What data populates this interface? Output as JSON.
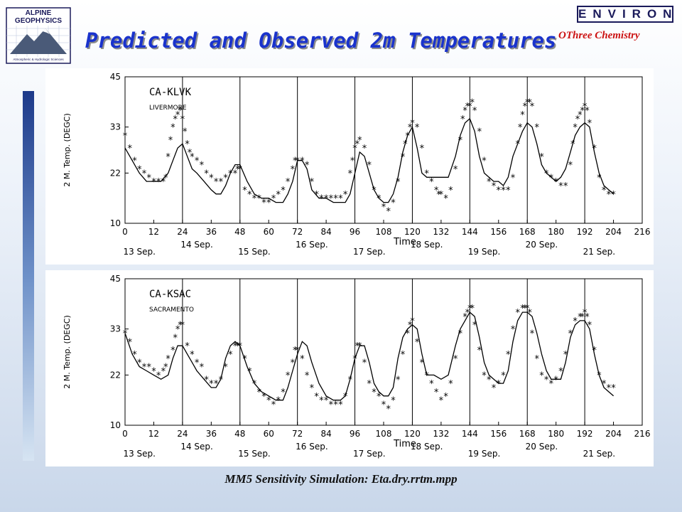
{
  "header": {
    "title": "Predicted and Observed 2m Temperatures",
    "logo_left_line1": "ALPINE",
    "logo_left_line2": "GEOPHYSICS",
    "logo_left_tagline": "Atmospheric & Hydrologic Sciences",
    "logo_right": "ENVIRON",
    "logo_right_subtitle": "OThree Chemistry"
  },
  "footer": {
    "caption": "MM5 Sensitivity Simulation:  Eta.dry.rrtm.mpp"
  },
  "colors": {
    "title": "#1a33cc",
    "logo_right": "#1a1a5a",
    "subtitle_right": "#cc1111",
    "side_bar_top": "#1d3a8a",
    "plot_line": "#000000"
  },
  "chart_data": [
    {
      "type": "line",
      "station": "CA-KLVK",
      "station_name": "LIVERMORE",
      "xlabel": "Time",
      "ylabel": "2 M. Temp. (DEGC)",
      "xlim": [
        0,
        216
      ],
      "ylim": [
        10,
        45
      ],
      "xticks": [
        0,
        12,
        24,
        36,
        48,
        60,
        72,
        84,
        96,
        108,
        120,
        132,
        144,
        156,
        168,
        180,
        192,
        204,
        216
      ],
      "yticks": [
        10,
        22,
        33,
        45
      ],
      "day_dividers": [
        24,
        48,
        72,
        96,
        120,
        144,
        168,
        192
      ],
      "day_labels": [
        {
          "label": "13 Sep.",
          "x": 6,
          "row": 1
        },
        {
          "label": "14 Sep.",
          "x": 30,
          "row": 0
        },
        {
          "label": "15 Sep.",
          "x": 54,
          "row": 1
        },
        {
          "label": "16 Sep.",
          "x": 78,
          "row": 0
        },
        {
          "label": "17 Sep.",
          "x": 102,
          "row": 1
        },
        {
          "label": "18 Sep.",
          "x": 126,
          "row": 0
        },
        {
          "label": "19 Sep.",
          "x": 150,
          "row": 1
        },
        {
          "label": "20 Sep.",
          "x": 174,
          "row": 0
        },
        {
          "label": "21 Sep.",
          "x": 198,
          "row": 1
        }
      ],
      "series": [
        {
          "role": "predicted",
          "style": "line",
          "x": [
            0,
            3,
            6,
            9,
            12,
            15,
            18,
            20,
            22,
            24,
            26,
            28,
            30,
            33,
            36,
            38,
            40,
            42,
            44,
            46,
            48,
            51,
            54,
            57,
            60,
            63,
            66,
            68,
            70,
            72,
            74,
            76,
            78,
            81,
            84,
            87,
            90,
            92,
            94,
            96,
            98,
            100,
            102,
            104,
            106,
            108,
            110,
            112,
            114,
            116,
            118,
            120,
            122,
            124,
            126,
            129,
            132,
            135,
            138,
            140,
            142,
            144,
            146,
            148,
            150,
            152,
            154,
            156,
            158,
            160,
            162,
            164,
            166,
            168,
            170,
            172,
            174,
            176,
            178,
            180,
            182,
            184,
            186,
            188,
            190,
            192,
            194,
            196,
            198,
            200,
            202,
            204
          ],
          "y": [
            28,
            25,
            22,
            20,
            20,
            20,
            22,
            25,
            28,
            29,
            26,
            23,
            22,
            20,
            18,
            17,
            17,
            19,
            22,
            24,
            24,
            20,
            17,
            16,
            16,
            15,
            15,
            17,
            20,
            25,
            25,
            23,
            18,
            16,
            16,
            15,
            15,
            15,
            17,
            22,
            27,
            26,
            22,
            18,
            16,
            15,
            15,
            17,
            21,
            27,
            31,
            33,
            28,
            22,
            21,
            21,
            21,
            21,
            26,
            31,
            34,
            35,
            32,
            26,
            22,
            21,
            20,
            20,
            19,
            21,
            26,
            29,
            32,
            34,
            33,
            29,
            24,
            22,
            21,
            20,
            21,
            23,
            27,
            31,
            33,
            34,
            33,
            27,
            22,
            19,
            18,
            17
          ]
        },
        {
          "role": "observed",
          "style": "asterisk",
          "x": [
            0,
            2,
            4,
            6,
            8,
            10,
            12,
            14,
            16,
            17,
            18,
            19,
            20,
            21,
            22,
            23,
            24,
            25,
            26,
            27,
            28,
            30,
            32,
            34,
            36,
            38,
            40,
            42,
            44,
            46,
            47,
            48,
            50,
            52,
            54,
            56,
            58,
            60,
            62,
            64,
            66,
            68,
            70,
            71,
            72,
            74,
            76,
            78,
            80,
            82,
            84,
            86,
            88,
            90,
            92,
            94,
            95,
            96,
            97,
            98,
            100,
            102,
            104,
            106,
            108,
            110,
            112,
            114,
            116,
            117,
            118,
            119,
            120,
            122,
            124,
            126,
            128,
            130,
            131,
            132,
            134,
            136,
            138,
            140,
            141,
            142,
            143,
            144,
            145,
            146,
            148,
            150,
            152,
            154,
            156,
            158,
            160,
            162,
            164,
            165,
            166,
            167,
            168,
            169,
            170,
            172,
            174,
            176,
            178,
            180,
            182,
            184,
            186,
            187,
            188,
            189,
            190,
            191,
            192,
            193,
            194,
            196,
            198,
            200,
            202,
            204
          ],
          "y": [
            31,
            28,
            25,
            23,
            22,
            21,
            20,
            20,
            20,
            21,
            26,
            30,
            33,
            35,
            36,
            37,
            35,
            32,
            29,
            27,
            26,
            25,
            24,
            22,
            21,
            20,
            20,
            21,
            22,
            22,
            23,
            23,
            18,
            17,
            16,
            16,
            15,
            15,
            16,
            17,
            18,
            20,
            23,
            25,
            25,
            25,
            24,
            20,
            17,
            16,
            16,
            16,
            16,
            16,
            17,
            22,
            25,
            28,
            29,
            30,
            28,
            24,
            18,
            16,
            14,
            13,
            15,
            20,
            26,
            29,
            31,
            33,
            34,
            33,
            28,
            22,
            20,
            18,
            17,
            17,
            16,
            18,
            23,
            30,
            35,
            37,
            38,
            38,
            39,
            37,
            32,
            25,
            20,
            19,
            18,
            18,
            18,
            21,
            29,
            33,
            36,
            38,
            39,
            39,
            38,
            33,
            26,
            22,
            21,
            20,
            19,
            19,
            24,
            29,
            33,
            35,
            36,
            37,
            38,
            37,
            34,
            28,
            21,
            18,
            17,
            17
          ]
        }
      ]
    },
    {
      "type": "line",
      "station": "CA-KSAC",
      "station_name": "SACRAMENTO",
      "xlabel": "Time",
      "ylabel": "2 M. Temp. (DEGC)",
      "xlim": [
        0,
        216
      ],
      "ylim": [
        10,
        45
      ],
      "xticks": [
        0,
        12,
        24,
        36,
        48,
        60,
        72,
        84,
        96,
        108,
        120,
        132,
        144,
        156,
        168,
        180,
        192,
        204,
        216
      ],
      "yticks": [
        10,
        22,
        33,
        45
      ],
      "day_dividers": [
        24,
        48,
        72,
        96,
        120,
        144,
        168,
        192
      ],
      "day_labels": [
        {
          "label": "13 Sep.",
          "x": 6,
          "row": 1
        },
        {
          "label": "14 Sep.",
          "x": 30,
          "row": 0
        },
        {
          "label": "15 Sep.",
          "x": 54,
          "row": 1
        },
        {
          "label": "16 Sep.",
          "x": 78,
          "row": 0
        },
        {
          "label": "17 Sep.",
          "x": 102,
          "row": 1
        },
        {
          "label": "18 Sep.",
          "x": 126,
          "row": 0
        },
        {
          "label": "19 Sep.",
          "x": 150,
          "row": 1
        },
        {
          "label": "20 Sep.",
          "x": 174,
          "row": 0
        },
        {
          "label": "21 Sep.",
          "x": 198,
          "row": 1
        }
      ],
      "series": [
        {
          "role": "predicted",
          "style": "line",
          "x": [
            0,
            3,
            6,
            9,
            12,
            15,
            18,
            20,
            22,
            24,
            26,
            28,
            30,
            33,
            36,
            38,
            40,
            42,
            44,
            46,
            48,
            51,
            54,
            57,
            60,
            63,
            66,
            68,
            70,
            72,
            74,
            76,
            78,
            81,
            84,
            87,
            90,
            92,
            94,
            96,
            98,
            100,
            102,
            104,
            106,
            108,
            110,
            112,
            114,
            116,
            118,
            120,
            122,
            124,
            126,
            129,
            132,
            135,
            138,
            140,
            142,
            144,
            146,
            148,
            150,
            152,
            154,
            156,
            158,
            160,
            162,
            164,
            166,
            168,
            170,
            172,
            174,
            176,
            178,
            180,
            182,
            184,
            186,
            188,
            190,
            192,
            194,
            196,
            198,
            200,
            202,
            204
          ],
          "y": [
            32,
            27,
            24,
            23,
            22,
            21,
            22,
            26,
            29,
            29,
            27,
            25,
            23,
            21,
            19,
            19,
            21,
            26,
            29,
            30,
            29,
            24,
            20,
            18,
            17,
            16,
            16,
            19,
            23,
            27,
            30,
            29,
            25,
            20,
            17,
            16,
            16,
            17,
            21,
            26,
            29,
            29,
            25,
            20,
            18,
            17,
            17,
            19,
            26,
            31,
            33,
            34,
            33,
            27,
            22,
            22,
            21,
            22,
            29,
            33,
            35,
            37,
            36,
            31,
            25,
            22,
            21,
            20,
            20,
            23,
            30,
            35,
            37,
            37,
            36,
            32,
            27,
            23,
            21,
            21,
            21,
            25,
            31,
            34,
            35,
            35,
            33,
            27,
            22,
            19,
            18,
            17
          ]
        },
        {
          "role": "observed",
          "style": "asterisk",
          "x": [
            0,
            2,
            4,
            6,
            8,
            10,
            12,
            14,
            16,
            17,
            18,
            20,
            21,
            22,
            23,
            24,
            26,
            28,
            30,
            32,
            34,
            36,
            38,
            40,
            42,
            44,
            46,
            47,
            48,
            50,
            52,
            54,
            56,
            58,
            60,
            62,
            64,
            66,
            68,
            70,
            71,
            72,
            74,
            76,
            78,
            80,
            82,
            84,
            86,
            88,
            90,
            92,
            94,
            96,
            97,
            98,
            100,
            102,
            104,
            106,
            108,
            110,
            112,
            114,
            116,
            118,
            119,
            120,
            122,
            124,
            126,
            128,
            130,
            132,
            134,
            136,
            138,
            140,
            142,
            143,
            144,
            145,
            146,
            148,
            150,
            152,
            154,
            156,
            158,
            160,
            162,
            164,
            166,
            167,
            168,
            169,
            170,
            172,
            174,
            176,
            178,
            180,
            182,
            184,
            186,
            188,
            190,
            191,
            192,
            193,
            194,
            196,
            198,
            200,
            202,
            204
          ],
          "y": [
            32,
            30,
            27,
            25,
            24,
            24,
            23,
            22,
            23,
            24,
            26,
            28,
            31,
            33,
            34,
            34,
            29,
            27,
            25,
            24,
            21,
            20,
            20,
            21,
            24,
            27,
            29,
            29,
            29,
            26,
            23,
            20,
            18,
            17,
            16,
            15,
            16,
            18,
            22,
            25,
            28,
            28,
            26,
            22,
            19,
            17,
            16,
            16,
            15,
            15,
            15,
            17,
            21,
            26,
            29,
            29,
            25,
            20,
            18,
            17,
            15,
            14,
            16,
            21,
            27,
            32,
            34,
            35,
            30,
            25,
            22,
            20,
            18,
            16,
            17,
            20,
            26,
            32,
            36,
            37,
            38,
            38,
            34,
            28,
            22,
            21,
            19,
            20,
            22,
            27,
            33,
            37,
            38,
            38,
            38,
            37,
            32,
            26,
            22,
            21,
            20,
            21,
            23,
            27,
            32,
            35,
            36,
            36,
            37,
            36,
            34,
            28,
            22,
            20,
            19,
            19
          ]
        }
      ]
    }
  ]
}
